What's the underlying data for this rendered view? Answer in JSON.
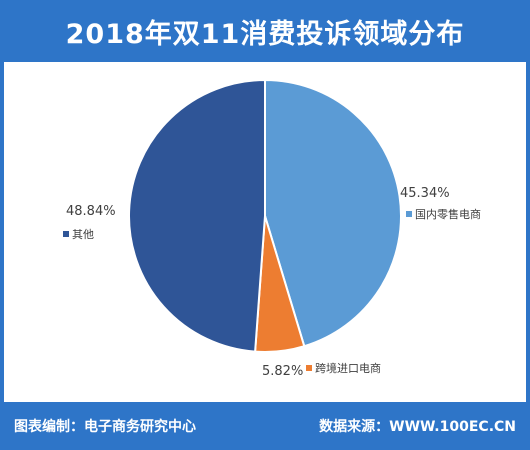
{
  "header": {
    "title": "2018年双11消费投诉领域分布"
  },
  "footer": {
    "left_text": "图表编制：电子商务研究中心",
    "right_text": "数据来源：WWW.100EC.CN"
  },
  "colors": {
    "brand": "#2e75c8",
    "slice_domestic": "#5b9bd5",
    "slice_crossborder": "#ed7d31",
    "slice_other": "#2f5597"
  },
  "chart_data": {
    "type": "pie",
    "title": "2018年双11消费投诉领域分布",
    "start_angle_deg": 0,
    "direction": "clockwise",
    "slices": [
      {
        "label": "国内零售电商",
        "value": 45.34,
        "value_label": "45.34%",
        "color": "#5b9bd5"
      },
      {
        "label": "跨境进口电商",
        "value": 5.82,
        "value_label": "5.82%",
        "color": "#ed7d31"
      },
      {
        "label": "其他",
        "value": 48.84,
        "value_label": "48.84%",
        "color": "#2f5597"
      }
    ]
  }
}
